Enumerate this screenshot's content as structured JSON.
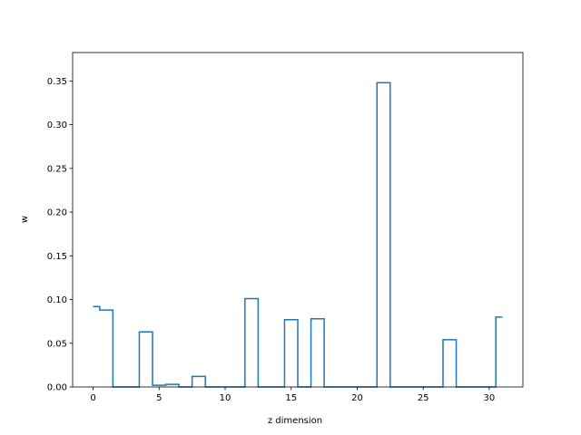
{
  "chart_data": {
    "type": "line",
    "drawstyle": "steps-mid",
    "title": "",
    "xlabel": "z dimension",
    "ylabel": "w",
    "xlim": [
      -1.55,
      32.55
    ],
    "ylim": [
      0,
      0.3825
    ],
    "xticks": [
      0,
      5,
      10,
      15,
      20,
      25,
      30
    ],
    "yticks": [
      0.0,
      0.05,
      0.1,
      0.15,
      0.2,
      0.25,
      0.3,
      0.35
    ],
    "grid": false,
    "series_color": "#1f77b4",
    "x": [
      0,
      1,
      2,
      3,
      4,
      5,
      6,
      7,
      8,
      9,
      10,
      11,
      12,
      13,
      14,
      15,
      16,
      17,
      18,
      19,
      20,
      21,
      22,
      23,
      24,
      25,
      26,
      27,
      28,
      29,
      30,
      31
    ],
    "values": [
      0.092,
      0.088,
      0.0,
      0.0,
      0.063,
      0.002,
      0.003,
      0.0,
      0.012,
      0.0,
      0.0,
      0.0,
      0.101,
      0.0,
      0.0,
      0.077,
      0.0,
      0.078,
      0.0,
      0.0,
      0.0,
      0.0,
      0.348,
      0.0,
      0.0,
      0.0,
      0.0,
      0.054,
      0.0,
      0.0,
      0.0,
      0.08
    ]
  }
}
